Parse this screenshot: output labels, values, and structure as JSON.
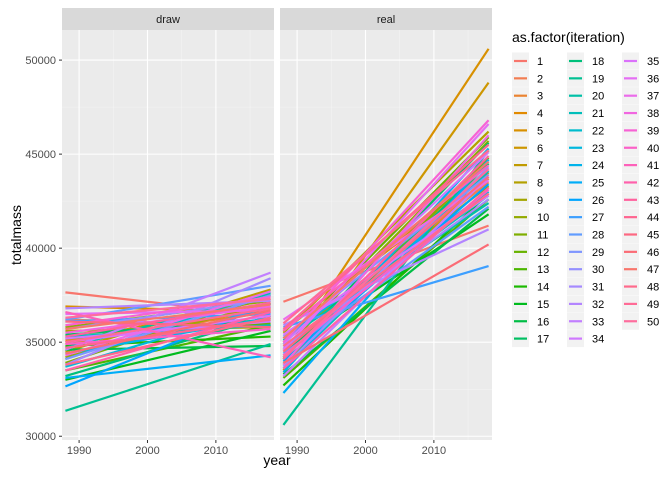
{
  "chart_data": {
    "type": "line",
    "xlabel": "year",
    "ylabel": "totalmass",
    "facets": [
      "draw",
      "real"
    ],
    "xlim": [
      1987.5,
      2018.5
    ],
    "ylim": [
      29800,
      51600
    ],
    "xticks": [
      1990,
      2000,
      2010
    ],
    "yticks": [
      30000,
      35000,
      40000,
      45000,
      50000
    ],
    "legend_title": "as.factor(iteration)",
    "legend_position": "right",
    "grid": true,
    "x": [
      1988,
      2018
    ],
    "series": [
      {
        "name": "1",
        "color": "#F8766D",
        "draw": [
          37650,
          36400
        ],
        "real": [
          37150,
          41200
        ]
      },
      {
        "name": "2",
        "color": "#F27D52",
        "draw": [
          36200,
          35900
        ],
        "real": [
          35000,
          43500
        ]
      },
      {
        "name": "3",
        "color": "#EA8331",
        "draw": [
          35100,
          36600
        ],
        "real": [
          34300,
          43700
        ]
      },
      {
        "name": "4",
        "color": "#E18A00",
        "draw": [
          34900,
          36800
        ],
        "real": [
          35600,
          44000
        ]
      },
      {
        "name": "5",
        "color": "#D89000",
        "draw": [
          36900,
          36600
        ],
        "real": [
          34100,
          50600
        ]
      },
      {
        "name": "6",
        "color": "#CD9600",
        "draw": [
          35000,
          37300
        ],
        "real": [
          33500,
          48800
        ]
      },
      {
        "name": "7",
        "color": "#C09B00",
        "draw": [
          34500,
          37800
        ],
        "real": [
          35600,
          44200
        ]
      },
      {
        "name": "8",
        "color": "#B3A000",
        "draw": [
          35600,
          35800
        ],
        "real": [
          35500,
          46200
        ]
      },
      {
        "name": "9",
        "color": "#A3A500",
        "draw": [
          34200,
          37100
        ],
        "real": [
          35000,
          43300
        ]
      },
      {
        "name": "10",
        "color": "#93AA00",
        "draw": [
          35800,
          37200
        ],
        "real": [
          34600,
          45700
        ]
      },
      {
        "name": "11",
        "color": "#7FAE00",
        "draw": [
          33900,
          37500
        ],
        "real": [
          33800,
          44800
        ]
      },
      {
        "name": "12",
        "color": "#68B200",
        "draw": [
          35200,
          36000
        ],
        "real": [
          34900,
          45900
        ]
      },
      {
        "name": "13",
        "color": "#4CB600",
        "draw": [
          33500,
          35900
        ],
        "real": [
          33100,
          42600
        ]
      },
      {
        "name": "14",
        "color": "#1BB900",
        "draw": [
          34800,
          35300
        ],
        "real": [
          32700,
          42900
        ]
      },
      {
        "name": "15",
        "color": "#00BB1E",
        "draw": [
          33000,
          35600
        ],
        "real": [
          34500,
          41800
        ]
      },
      {
        "name": "16",
        "color": "#00BD45",
        "draw": [
          34600,
          34800
        ],
        "real": [
          33300,
          42100
        ]
      },
      {
        "name": "17",
        "color": "#00BF62",
        "draw": [
          35400,
          36200
        ],
        "real": [
          34200,
          45600
        ]
      },
      {
        "name": "18",
        "color": "#00C07B",
        "draw": [
          33200,
          36400
        ],
        "real": [
          33900,
          44500
        ]
      },
      {
        "name": "19",
        "color": "#00C092",
        "draw": [
          31350,
          34900
        ],
        "real": [
          30600,
          45200
        ]
      },
      {
        "name": "20",
        "color": "#00C0A7",
        "draw": [
          34700,
          37600
        ],
        "real": [
          35100,
          42400
        ]
      },
      {
        "name": "21",
        "color": "#00BEBA",
        "draw": [
          35300,
          35900
        ],
        "real": [
          33600,
          44100
        ]
      },
      {
        "name": "22",
        "color": "#00BCCD",
        "draw": [
          34100,
          37700
        ],
        "real": [
          34800,
          42800
        ]
      },
      {
        "name": "23",
        "color": "#00B8DE",
        "draw": [
          33700,
          36900
        ],
        "real": [
          35200,
          43000
        ]
      },
      {
        "name": "24",
        "color": "#00B3EB",
        "draw": [
          34400,
          36300
        ],
        "real": [
          33400,
          45300
        ]
      },
      {
        "name": "25",
        "color": "#00ADF8",
        "draw": [
          33100,
          34300
        ],
        "real": [
          32300,
          44700
        ]
      },
      {
        "name": "26",
        "color": "#00A5FF",
        "draw": [
          32650,
          37050
        ],
        "real": [
          34000,
          43400
        ]
      },
      {
        "name": "27",
        "color": "#3D9FFF",
        "draw": [
          36100,
          36500
        ],
        "real": [
          35800,
          39050
        ]
      },
      {
        "name": "28",
        "color": "#619CFF",
        "draw": [
          36200,
          38000
        ],
        "real": [
          34400,
          42200
        ]
      },
      {
        "name": "29",
        "color": "#7F96FF",
        "draw": [
          34100,
          37500
        ],
        "real": [
          35300,
          43900
        ]
      },
      {
        "name": "30",
        "color": "#9590FF",
        "draw": [
          35700,
          37300
        ],
        "real": [
          33700,
          44300
        ]
      },
      {
        "name": "31",
        "color": "#A58AFF",
        "draw": [
          33800,
          38400
        ],
        "real": [
          34700,
          42600
        ]
      },
      {
        "name": "32",
        "color": "#B385FF",
        "draw": [
          36800,
          37200
        ],
        "real": [
          35900,
          41000
        ]
      },
      {
        "name": "33",
        "color": "#C27FFF",
        "draw": [
          34600,
          38700
        ],
        "real": [
          33200,
          43800
        ]
      },
      {
        "name": "34",
        "color": "#CF78FF",
        "draw": [
          35200,
          36100
        ],
        "real": [
          34900,
          45100
        ]
      },
      {
        "name": "35",
        "color": "#DB72FB",
        "draw": [
          35000,
          36400
        ],
        "real": [
          35400,
          42800
        ]
      },
      {
        "name": "36",
        "color": "#E56EF4",
        "draw": [
          36500,
          36700
        ],
        "real": [
          34600,
          46600
        ]
      },
      {
        "name": "37",
        "color": "#EB6CEA",
        "draw": [
          34300,
          37700
        ],
        "real": [
          36200,
          43600
        ]
      },
      {
        "name": "38",
        "color": "#F166E0",
        "draw": [
          35500,
          36900
        ],
        "real": [
          33800,
          46000
        ]
      },
      {
        "name": "39",
        "color": "#F763D4",
        "draw": [
          35900,
          37400
        ],
        "real": [
          35000,
          46800
        ]
      },
      {
        "name": "40",
        "color": "#FB61C8",
        "draw": [
          34900,
          35700
        ],
        "real": [
          34300,
          43100
        ]
      },
      {
        "name": "41",
        "color": "#FD61BA",
        "draw": [
          36600,
          34200
        ],
        "real": [
          35600,
          44400
        ]
      },
      {
        "name": "42",
        "color": "#FF61AC",
        "draw": [
          33500,
          36600
        ],
        "real": [
          33600,
          43200
        ]
      },
      {
        "name": "43",
        "color": "#FF629E",
        "draw": [
          35300,
          37100
        ],
        "real": [
          34100,
          44900
        ]
      },
      {
        "name": "44",
        "color": "#FF6590",
        "draw": [
          34700,
          36200
        ],
        "real": [
          35700,
          45500
        ]
      },
      {
        "name": "45",
        "color": "#FD6882",
        "draw": [
          36100,
          35800
        ],
        "real": [
          34500,
          43800
        ]
      },
      {
        "name": "46",
        "color": "#FB6C76",
        "draw": [
          34400,
          36700
        ],
        "real": [
          33900,
          40200
        ]
      },
      {
        "name": "47",
        "color": "#F8766D",
        "draw": [
          35700,
          37000
        ],
        "real": [
          35200,
          44600
        ]
      },
      {
        "name": "48",
        "color": "#FF6A8C",
        "draw": [
          33800,
          36300
        ],
        "real": [
          34800,
          42900
        ]
      },
      {
        "name": "49",
        "color": "#FF6B96",
        "draw": [
          35000,
          36800
        ],
        "real": [
          36000,
          45200
        ]
      },
      {
        "name": "50",
        "color": "#FE6D9E",
        "draw": [
          36300,
          37300
        ],
        "real": [
          34200,
          44200
        ]
      }
    ]
  }
}
